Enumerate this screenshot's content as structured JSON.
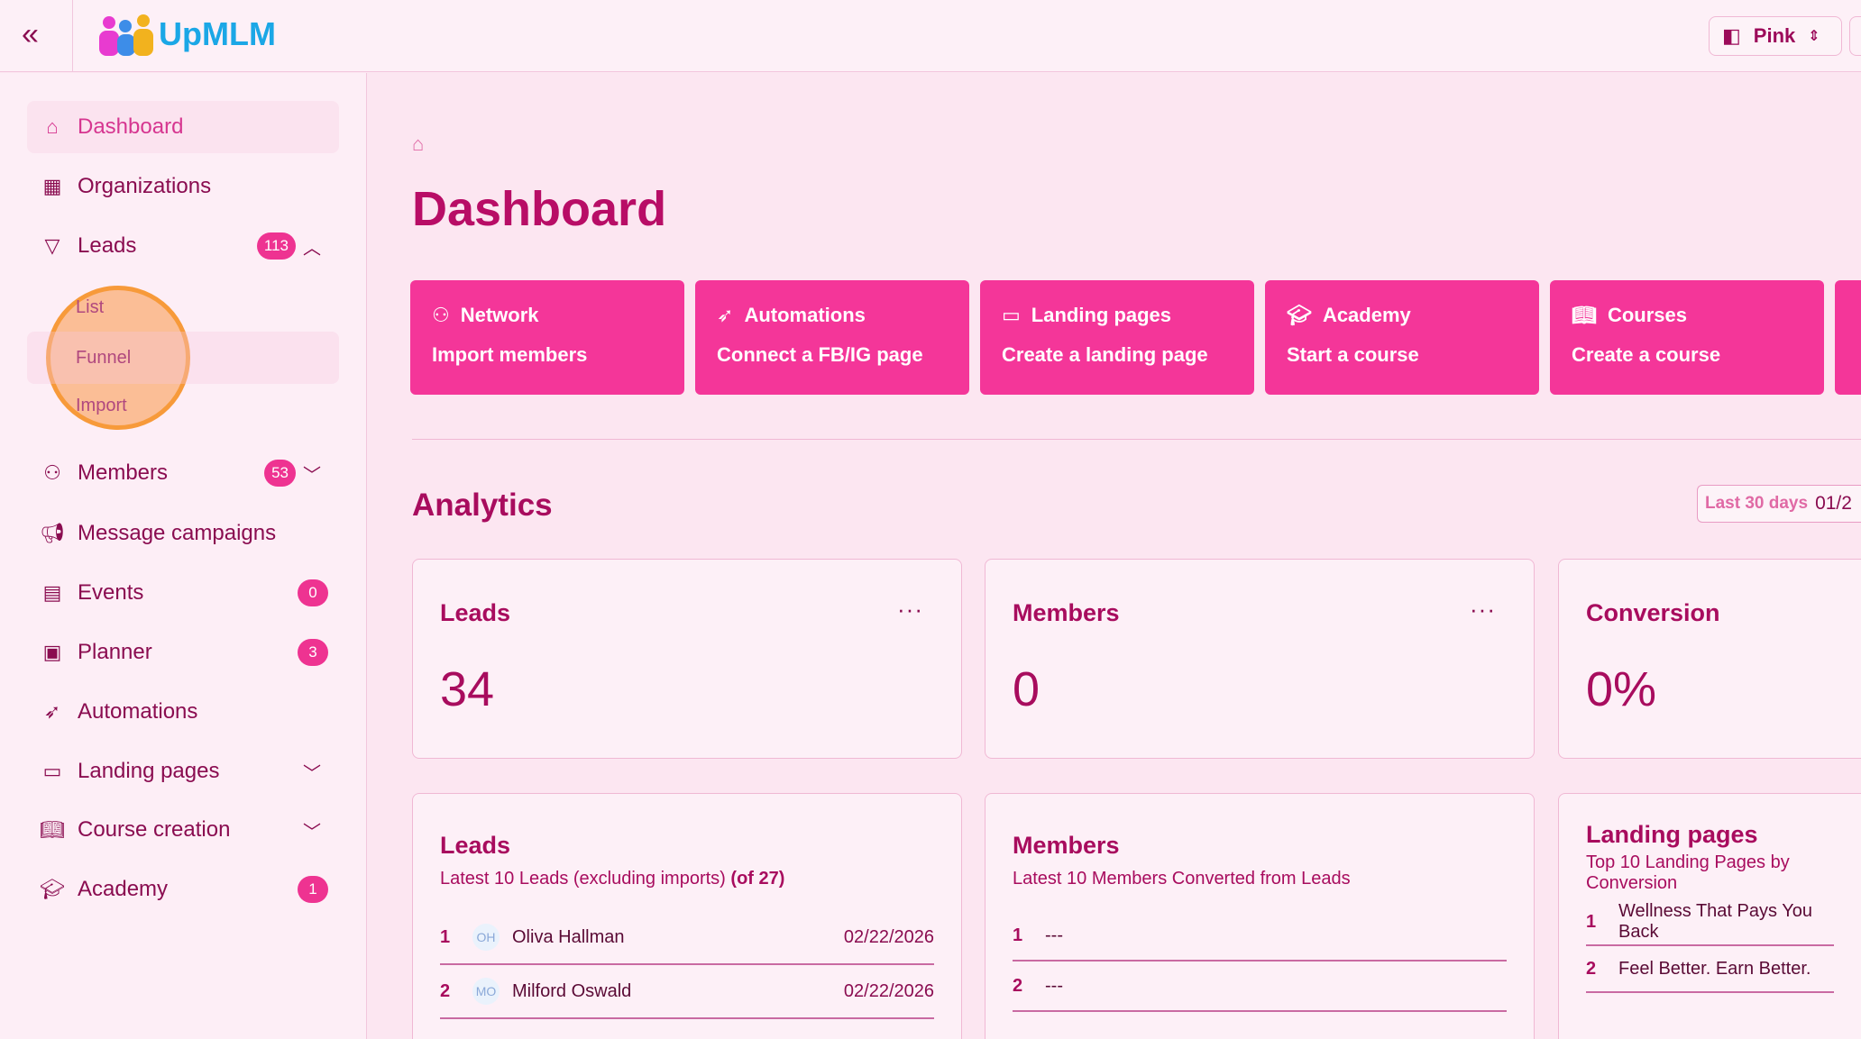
{
  "header": {
    "logo_text": "UpMLM",
    "theme": "Pink"
  },
  "sidebar": {
    "items": [
      {
        "label": "Dashboard",
        "icon": "home-icon"
      },
      {
        "label": "Organizations",
        "icon": "building-icon"
      },
      {
        "label": "Leads",
        "icon": "funnel-icon",
        "badge": "113",
        "expanded": true
      },
      {
        "label": "List"
      },
      {
        "label": "Funnel"
      },
      {
        "label": "Import"
      },
      {
        "label": "Members",
        "icon": "users-icon",
        "badge": "53"
      },
      {
        "label": "Message campaigns",
        "icon": "megaphone-icon"
      },
      {
        "label": "Events",
        "icon": "calendar-icon",
        "badge": "0"
      },
      {
        "label": "Planner",
        "icon": "clipboard-icon",
        "badge": "3"
      },
      {
        "label": "Automations",
        "icon": "rocket-icon"
      },
      {
        "label": "Landing pages",
        "icon": "monitor-icon"
      },
      {
        "label": "Course creation",
        "icon": "book-icon"
      },
      {
        "label": "Academy",
        "icon": "graduation-cap-icon",
        "badge": "1"
      }
    ]
  },
  "main": {
    "title": "Dashboard",
    "actions": [
      {
        "title": "Network",
        "sub": "Import members",
        "icon": "users-icon"
      },
      {
        "title": "Automations",
        "sub": "Connect a FB/IG page",
        "icon": "rocket-icon"
      },
      {
        "title": "Landing pages",
        "sub": "Create a landing page",
        "icon": "monitor-icon"
      },
      {
        "title": "Academy",
        "sub": "Start a course",
        "icon": "graduation-cap-icon"
      },
      {
        "title": "Courses",
        "sub": "Create a course",
        "icon": "book-icon"
      }
    ],
    "analytics": {
      "title": "Analytics",
      "range_label": "Last 30 days",
      "range_value": "01/2"
    },
    "stats": [
      {
        "title": "Leads",
        "value": "34"
      },
      {
        "title": "Members",
        "value": "0"
      },
      {
        "title": "Conversion",
        "value": "0%"
      }
    ],
    "lists": {
      "leads": {
        "title": "Leads",
        "subtitle": "Latest 10 Leads (excluding imports)",
        "count": "(of 27)",
        "rows": [
          {
            "rank": "1",
            "initials": "OH",
            "name": "Oliva Hallman",
            "date": "02/22/2026"
          },
          {
            "rank": "2",
            "initials": "MO",
            "name": "Milford Oswald",
            "date": "02/22/2026"
          }
        ]
      },
      "members": {
        "title": "Members",
        "subtitle": "Latest 10 Members Converted from Leads",
        "rows": [
          {
            "rank": "1",
            "name": "---"
          },
          {
            "rank": "2",
            "name": "---"
          }
        ]
      },
      "landing": {
        "title": "Landing pages",
        "subtitle": "Top 10 Landing Pages by Conversion",
        "rows": [
          {
            "rank": "1",
            "name": "Wellness That Pays You Back"
          },
          {
            "rank": "2",
            "name": "Feel Better. Earn Better."
          }
        ]
      }
    }
  },
  "colors": {
    "accent": "#f43699",
    "text": "#a80c5e",
    "background": "#fce6f1"
  }
}
